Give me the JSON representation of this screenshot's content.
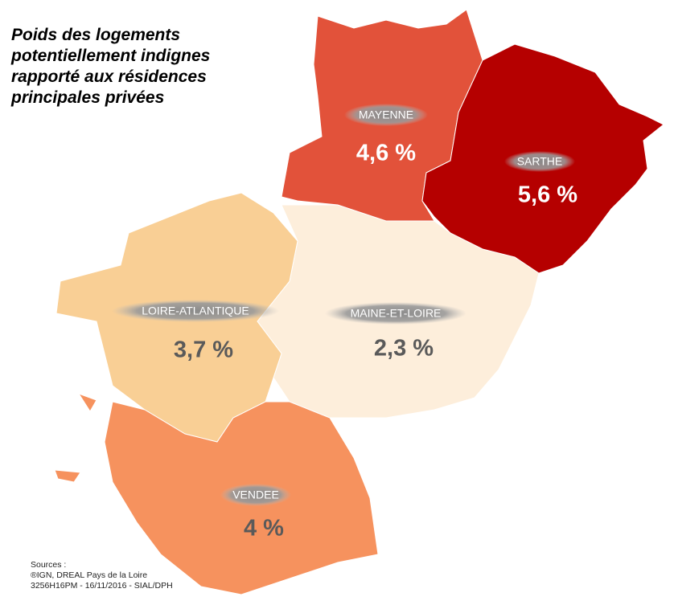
{
  "title": [
    "Poids des logements",
    "potentiellement indignes",
    "rapporté aux résidences",
    "principales privées"
  ],
  "regions": [
    {
      "name": "MAYENNE",
      "value": "4,6 %",
      "color": "#e2523a"
    },
    {
      "name": "SARTHE",
      "value": "5,6 %",
      "color": "#b50000"
    },
    {
      "name": "LOIRE-ATLANTIQUE",
      "value": "3,7 %",
      "color": "#f9cf95"
    },
    {
      "name": "MAINE-ET-LOIRE",
      "value": "2,3 %",
      "color": "#fdeedb"
    },
    {
      "name": "VENDEE",
      "value": "4 %",
      "color": "#f6925e"
    }
  ],
  "sources": [
    "Sources :",
    "®IGN, DREAL Pays de la Loire",
    "3256H16PM - 16/11/2016 - SIAL/DPH"
  ]
}
